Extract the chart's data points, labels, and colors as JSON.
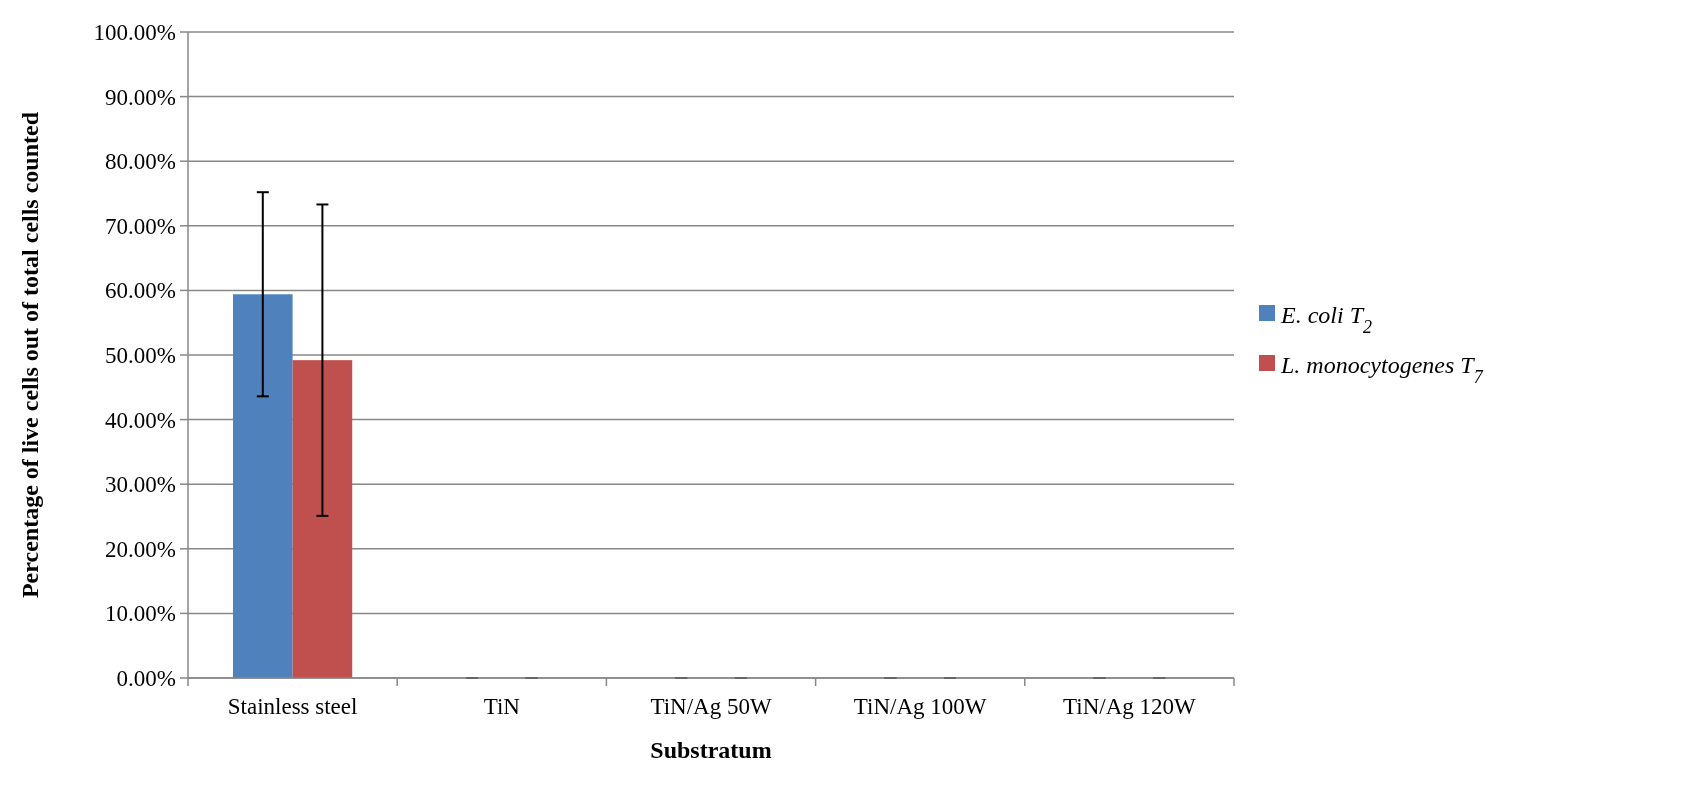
{
  "chart_data": {
    "type": "bar",
    "xlabel": "Substratum",
    "ylabel": "Percentage of live cells out of total cells counted",
    "categories": [
      "Stainless steel",
      "TiN",
      "TiN/Ag 50W",
      "TiN/Ag 100W",
      "TiN/Ag 120W"
    ],
    "series": [
      {
        "name": "E. coli T$_{2}$",
        "color": "#4f81bd",
        "values": [
          59.4,
          0,
          0,
          0,
          0
        ],
        "errors": [
          15.8,
          0,
          0,
          0,
          0
        ]
      },
      {
        "name": "L. monocytogenes T$_{7}$",
        "color": "#c0504d",
        "values": [
          49.2,
          0,
          0,
          0,
          0
        ],
        "errors": [
          24.1,
          0,
          0,
          0,
          0
        ]
      }
    ],
    "ylim": [
      0,
      100
    ],
    "yticks": [
      {
        "value": 0,
        "label": "0.00%"
      },
      {
        "value": 10,
        "label": "10.00%"
      },
      {
        "value": 20,
        "label": "20.00%"
      },
      {
        "value": 30,
        "label": "30.00%"
      },
      {
        "value": 40,
        "label": "40.00%"
      },
      {
        "value": 50,
        "label": "50.00%"
      },
      {
        "value": 60,
        "label": "60.00%"
      },
      {
        "value": 70,
        "label": "70.00%"
      },
      {
        "value": 80,
        "label": "80.00%"
      },
      {
        "value": 90,
        "label": "90.00%"
      },
      {
        "value": 100,
        "label": "100.00%"
      }
    ],
    "grid": "y",
    "legend": "right"
  }
}
